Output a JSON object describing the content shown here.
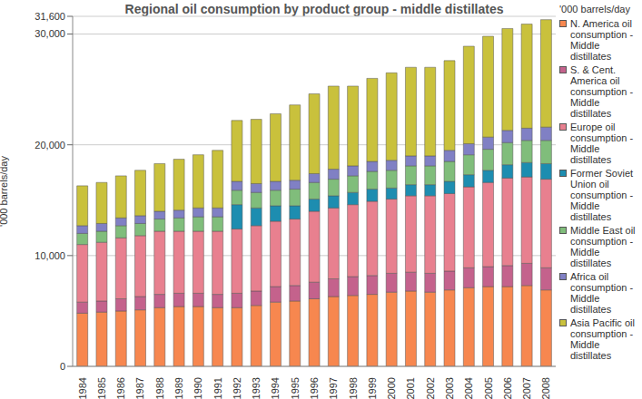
{
  "chart_data": {
    "type": "bar",
    "stacked": true,
    "grid": true,
    "legend": "right",
    "title": "Regional oil consumption by product group - middle distillates",
    "y_label": "'000 barrels/day",
    "legend_title": "'000 barrels/day",
    "categories": [
      "1984",
      "1985",
      "1986",
      "1987",
      "1988",
      "1989",
      "1990",
      "1991",
      "1992",
      "1993",
      "1994",
      "1995",
      "1996",
      "1997",
      "1998",
      "1999",
      "2000",
      "2001",
      "2002",
      "2003",
      "2004",
      "2005",
      "2006",
      "2007",
      "2008"
    ],
    "ylim": [
      0,
      31600
    ],
    "yticks": [
      0,
      {
        "value": 10000,
        "label": "10,000"
      },
      {
        "value": 20000,
        "label": "20,000"
      },
      {
        "value": 30000,
        "label": "30,000"
      },
      {
        "value": 31600,
        "label": "31,600"
      }
    ],
    "series": [
      {
        "name": "N. America oil consumption - Middle distillates",
        "color": "#f7874f",
        "values": [
          4800,
          4900,
          5000,
          5100,
          5300,
          5400,
          5400,
          5300,
          5300,
          5500,
          5800,
          5900,
          6100,
          6300,
          6400,
          6500,
          6700,
          6800,
          6700,
          6900,
          7100,
          7200,
          7200,
          7300,
          6900
        ]
      },
      {
        "name": "S. & Cent. America oil consumption - Middle distillates",
        "color": "#c4628c",
        "values": [
          1000,
          1000,
          1100,
          1200,
          1200,
          1200,
          1200,
          1200,
          1300,
          1300,
          1400,
          1400,
          1500,
          1600,
          1700,
          1700,
          1700,
          1700,
          1700,
          1700,
          1800,
          1800,
          1900,
          2000,
          2000
        ]
      },
      {
        "name": "Europe oil consumption - Middle distillates",
        "color": "#e8808f",
        "values": [
          5200,
          5300,
          5500,
          5500,
          5700,
          5600,
          5600,
          5700,
          5800,
          5900,
          5900,
          6000,
          6400,
          6400,
          6500,
          6700,
          6700,
          6900,
          7000,
          7000,
          7300,
          7600,
          7900,
          7800,
          8000
        ]
      },
      {
        "name": "Former Soviet Union oil consumption - Middle distillates",
        "color": "#1d8db0",
        "values": [
          null,
          null,
          null,
          null,
          null,
          null,
          null,
          null,
          2200,
          1600,
          1400,
          1200,
          1100,
          1100,
          1100,
          1100,
          1000,
          1000,
          1000,
          1100,
          1100,
          1100,
          1200,
          1300,
          1400
        ]
      },
      {
        "name": "Middle East oil consumption - Middle distillates",
        "color": "#80bd7b",
        "values": [
          1000,
          1000,
          1100,
          1100,
          1100,
          1200,
          1300,
          1300,
          1300,
          1400,
          1400,
          1500,
          1500,
          1500,
          1500,
          1600,
          1600,
          1700,
          1700,
          1800,
          1800,
          1900,
          2000,
          2000,
          2100
        ]
      },
      {
        "name": "Africa oil consumption - Middle distillates",
        "color": "#8080c4",
        "values": [
          700,
          700,
          700,
          700,
          700,
          700,
          800,
          800,
          800,
          800,
          800,
          800,
          800,
          900,
          900,
          900,
          900,
          900,
          900,
          1000,
          1000,
          1100,
          1100,
          1100,
          1200
        ]
      },
      {
        "name": "Asia Pacific oil consumption - Middle distillates",
        "color": "#c9c13c",
        "values": [
          3600,
          3700,
          3800,
          4100,
          4300,
          4600,
          4800,
          5200,
          5500,
          5800,
          6100,
          6800,
          7200,
          7500,
          7200,
          7500,
          7900,
          8000,
          8000,
          8100,
          8800,
          9100,
          9200,
          9400,
          9700
        ]
      }
    ]
  }
}
